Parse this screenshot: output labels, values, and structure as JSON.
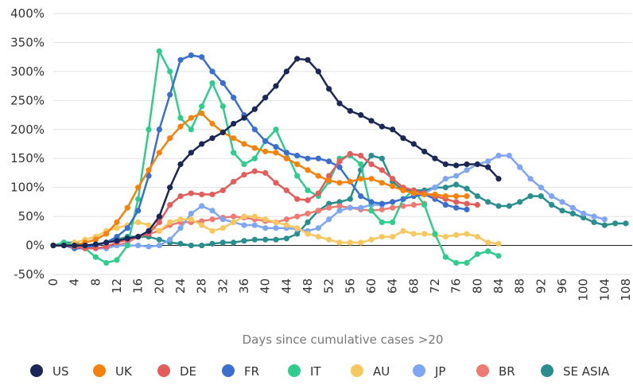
{
  "chart_data": {
    "type": "line",
    "xlabel": "Days since cumulative cases >20",
    "x": [
      0,
      2,
      4,
      6,
      8,
      10,
      12,
      14,
      16,
      18,
      20,
      22,
      24,
      26,
      28,
      30,
      32,
      34,
      36,
      38,
      40,
      42,
      44,
      46,
      48,
      50,
      52,
      54,
      56,
      58,
      60,
      62,
      64,
      66,
      68,
      70,
      72,
      74,
      76,
      78,
      80,
      82,
      84,
      86,
      88,
      90,
      92,
      94,
      96,
      98,
      100,
      102,
      104,
      106,
      108
    ],
    "xlim": [
      0,
      108
    ],
    "xticks": [
      0,
      4,
      8,
      12,
      16,
      20,
      24,
      28,
      32,
      36,
      40,
      44,
      48,
      52,
      56,
      60,
      64,
      68,
      72,
      76,
      80,
      84,
      88,
      92,
      96,
      100,
      104,
      108
    ],
    "ylim": [
      -50,
      400
    ],
    "yticks": [
      {
        "value": -50,
        "label": "-50%"
      },
      {
        "value": 0,
        "label": "0%"
      },
      {
        "value": 50,
        "label": "50%"
      },
      {
        "value": 100,
        "label": "100%"
      },
      {
        "value": 150,
        "label": "150%"
      },
      {
        "value": 200,
        "label": "200%"
      },
      {
        "value": 250,
        "label": "250%"
      },
      {
        "value": 300,
        "label": "300%"
      },
      {
        "value": 350,
        "label": "350%"
      },
      {
        "value": 400,
        "label": "400%"
      }
    ],
    "grid": true,
    "legend": "bottom",
    "series": [
      {
        "name": "US",
        "color": "#1b2857",
        "values": [
          0,
          0,
          0,
          0,
          2,
          5,
          8,
          12,
          15,
          25,
          50,
          100,
          140,
          160,
          175,
          185,
          195,
          210,
          220,
          235,
          255,
          275,
          300,
          322,
          320,
          300,
          270,
          245,
          232,
          225,
          215,
          205,
          200,
          185,
          175,
          162,
          150,
          140,
          138,
          140,
          140,
          135,
          115,
          null,
          null,
          null,
          null,
          null,
          null,
          null,
          null,
          null,
          null,
          null,
          null
        ]
      },
      {
        "name": "UK",
        "color": "#f5820d",
        "values": [
          0,
          0,
          0,
          5,
          10,
          20,
          40,
          65,
          100,
          130,
          160,
          185,
          205,
          220,
          228,
          210,
          195,
          185,
          175,
          168,
          162,
          160,
          150,
          140,
          130,
          120,
          112,
          108,
          110,
          115,
          115,
          108,
          102,
          95,
          90,
          88,
          88,
          85,
          85,
          85,
          null,
          null,
          null,
          null,
          null,
          null,
          null,
          null,
          null,
          null,
          null,
          null,
          null,
          null,
          null
        ]
      },
      {
        "name": "DE",
        "color": "#e35d5d",
        "values": [
          0,
          0,
          -2,
          -5,
          -5,
          -2,
          5,
          10,
          15,
          20,
          40,
          70,
          85,
          90,
          88,
          88,
          95,
          110,
          122,
          128,
          125,
          108,
          95,
          80,
          78,
          90,
          120,
          145,
          158,
          155,
          140,
          130,
          115,
          100,
          95,
          90,
          85,
          80,
          75,
          72,
          70,
          null,
          null,
          null,
          null,
          null,
          null,
          null,
          null,
          null,
          null,
          null,
          null,
          null,
          null
        ]
      },
      {
        "name": "FR",
        "color": "#3a6fcf",
        "values": [
          0,
          0,
          -5,
          -5,
          0,
          5,
          15,
          30,
          60,
          120,
          200,
          260,
          320,
          328,
          325,
          300,
          280,
          255,
          225,
          200,
          180,
          170,
          160,
          155,
          150,
          150,
          145,
          135,
          110,
          85,
          75,
          72,
          75,
          80,
          85,
          88,
          80,
          70,
          65,
          62,
          null,
          null,
          null,
          null,
          null,
          null,
          null,
          null,
          null,
          null,
          null,
          null,
          null,
          null,
          null
        ]
      },
      {
        "name": "IT",
        "color": "#2fcc8e",
        "values": [
          0,
          5,
          0,
          -5,
          -20,
          -30,
          -25,
          0,
          80,
          200,
          335,
          300,
          220,
          200,
          240,
          280,
          240,
          160,
          140,
          150,
          180,
          200,
          160,
          120,
          95,
          85,
          110,
          150,
          155,
          140,
          60,
          40,
          40,
          80,
          95,
          70,
          20,
          -20,
          -30,
          -30,
          -15,
          -10,
          -18,
          null,
          null,
          null,
          null,
          null,
          null,
          null,
          null,
          null,
          null,
          null,
          null
        ]
      },
      {
        "name": "AU",
        "color": "#f6c85f",
        "values": [
          0,
          0,
          5,
          10,
          15,
          25,
          30,
          35,
          40,
          35,
          25,
          40,
          45,
          45,
          35,
          25,
          30,
          40,
          50,
          50,
          45,
          40,
          35,
          30,
          20,
          15,
          10,
          5,
          5,
          5,
          10,
          15,
          15,
          25,
          20,
          20,
          18,
          15,
          18,
          20,
          15,
          5,
          3,
          null,
          null,
          null,
          null,
          null,
          null,
          null,
          null,
          null,
          null,
          null,
          null
        ]
      },
      {
        "name": "JP",
        "color": "#7fa6f4",
        "values": [
          0,
          0,
          -5,
          -5,
          -5,
          -5,
          0,
          0,
          0,
          -2,
          0,
          10,
          30,
          55,
          68,
          60,
          45,
          40,
          35,
          35,
          30,
          30,
          30,
          28,
          25,
          30,
          45,
          60,
          65,
          65,
          70,
          70,
          75,
          80,
          85,
          90,
          100,
          115,
          120,
          130,
          140,
          145,
          155,
          155,
          135,
          115,
          100,
          85,
          75,
          65,
          55,
          50,
          45,
          null,
          null
        ]
      },
      {
        "name": "BR",
        "color": "#ef7a72",
        "values": [
          0,
          0,
          0,
          -5,
          -5,
          -5,
          0,
          5,
          15,
          20,
          25,
          35,
          40,
          40,
          42,
          45,
          48,
          50,
          48,
          45,
          42,
          40,
          45,
          50,
          55,
          60,
          65,
          68,
          65,
          62,
          60,
          62,
          65,
          68,
          70,
          72,
          null,
          null,
          null,
          null,
          null,
          null,
          null,
          null,
          null,
          null,
          null,
          null,
          null,
          null,
          null,
          null,
          null,
          null,
          null
        ]
      },
      {
        "name": "SE ASIA",
        "color": "#2a8e8e",
        "values": [
          0,
          5,
          5,
          0,
          0,
          5,
          10,
          15,
          15,
          15,
          10,
          5,
          3,
          0,
          0,
          3,
          5,
          5,
          8,
          10,
          10,
          10,
          12,
          20,
          40,
          60,
          72,
          75,
          80,
          130,
          155,
          150,
          110,
          95,
          95,
          95,
          100,
          100,
          105,
          98,
          85,
          75,
          68,
          68,
          75,
          85,
          85,
          70,
          60,
          55,
          48,
          40,
          35,
          38,
          38
        ]
      }
    ]
  }
}
